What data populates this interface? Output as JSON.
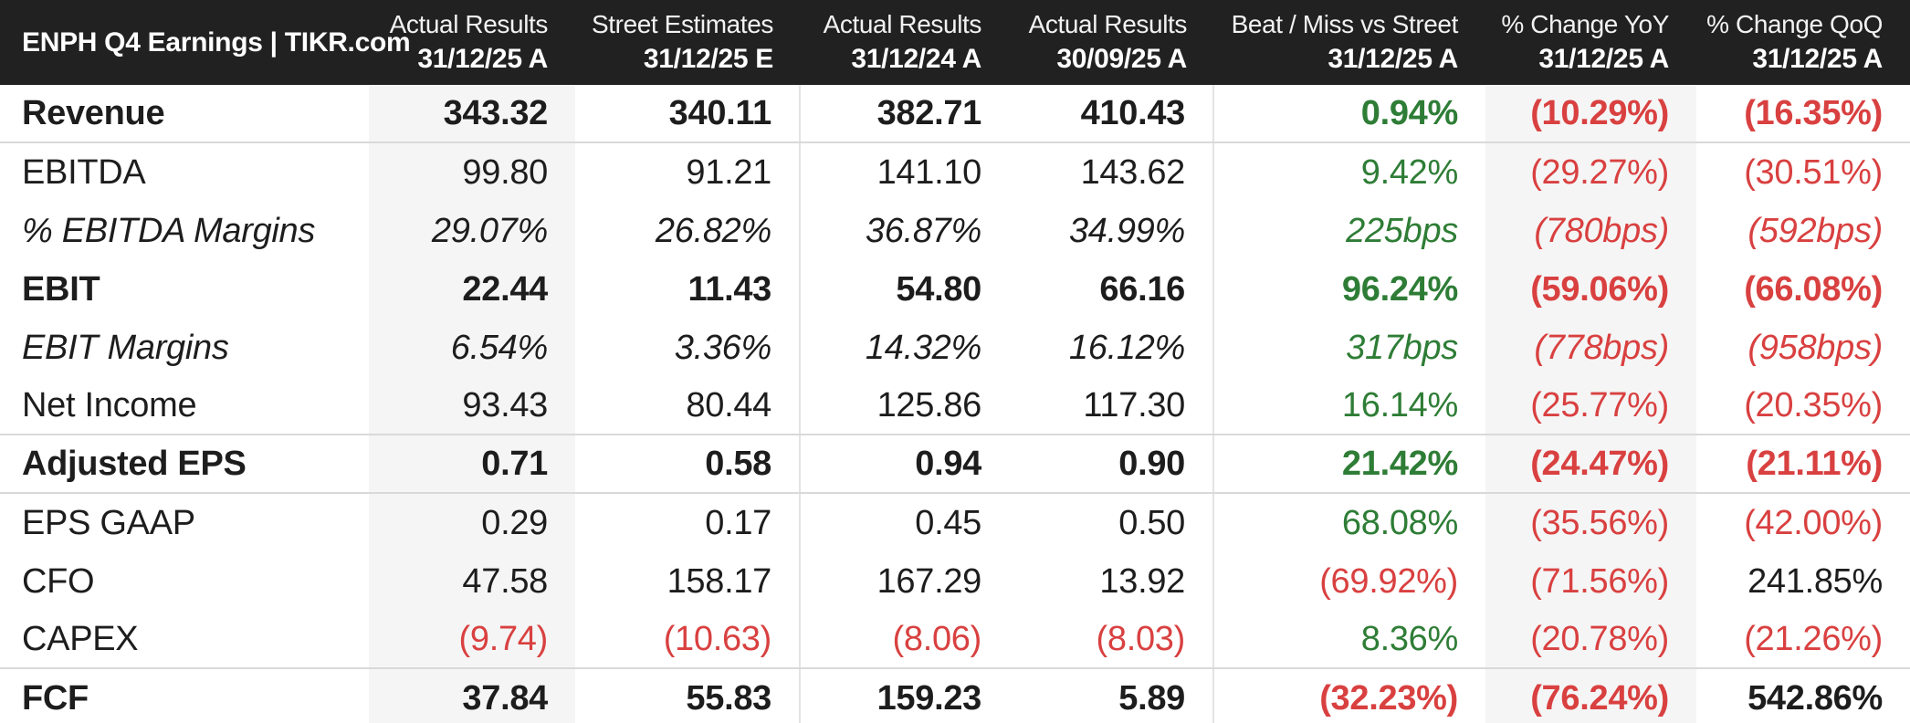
{
  "colors": {
    "header_bg": "#212121",
    "header_text": "#ffffff",
    "text": "#1d1d1d",
    "positive": "#2e7d36",
    "negative": "#d94040",
    "shade": "#f5f5f5",
    "separator": "#d9d9d9",
    "divider": "#e3e3e3",
    "page_bg": "#ffffff"
  },
  "chart_data": {
    "type": "table",
    "title": "ENPH Q4 Earnings | TIKR.com",
    "columns": [
      {
        "label": "Actual Results",
        "period": "31/12/25 A"
      },
      {
        "label": "Street Estimates",
        "period": "31/12/25 E"
      },
      {
        "label": "Actual Results",
        "period": "31/12/24 A"
      },
      {
        "label": "Actual Results",
        "period": "30/09/25 A"
      },
      {
        "label": "Beat / Miss vs Street",
        "period": "31/12/25 A"
      },
      {
        "label": "% Change YoY",
        "period": "31/12/25 A"
      },
      {
        "label": "% Change QoQ",
        "period": "31/12/25 A"
      }
    ],
    "layout": {
      "shaded_columns": [
        0,
        5
      ],
      "divider_after_columns": [
        1,
        3
      ],
      "grid": "off",
      "units": "values in millions except per-share and percentages"
    },
    "rows": [
      {
        "label": "Revenue",
        "emphasis": "bold",
        "separator_after": true,
        "cells": [
          {
            "text": "343.32",
            "tone": "plain"
          },
          {
            "text": "340.11",
            "tone": "plain"
          },
          {
            "text": "382.71",
            "tone": "plain"
          },
          {
            "text": "410.43",
            "tone": "plain"
          },
          {
            "text": "0.94%",
            "tone": "pos"
          },
          {
            "text": "(10.29%)",
            "tone": "neg"
          },
          {
            "text": "(16.35%)",
            "tone": "neg"
          }
        ]
      },
      {
        "label": "EBITDA",
        "emphasis": "normal",
        "separator_after": false,
        "cells": [
          {
            "text": "99.80",
            "tone": "plain"
          },
          {
            "text": "91.21",
            "tone": "plain"
          },
          {
            "text": "141.10",
            "tone": "plain"
          },
          {
            "text": "143.62",
            "tone": "plain"
          },
          {
            "text": "9.42%",
            "tone": "pos"
          },
          {
            "text": "(29.27%)",
            "tone": "neg"
          },
          {
            "text": "(30.51%)",
            "tone": "neg"
          }
        ]
      },
      {
        "label": "% EBITDA Margins",
        "emphasis": "italic",
        "separator_after": false,
        "cells": [
          {
            "text": "29.07%",
            "tone": "plain"
          },
          {
            "text": "26.82%",
            "tone": "plain"
          },
          {
            "text": "36.87%",
            "tone": "plain"
          },
          {
            "text": "34.99%",
            "tone": "plain"
          },
          {
            "text": "225bps",
            "tone": "pos"
          },
          {
            "text": "(780bps)",
            "tone": "neg"
          },
          {
            "text": "(592bps)",
            "tone": "neg"
          }
        ]
      },
      {
        "label": "EBIT",
        "emphasis": "bold",
        "separator_after": false,
        "cells": [
          {
            "text": "22.44",
            "tone": "plain"
          },
          {
            "text": "11.43",
            "tone": "plain"
          },
          {
            "text": "54.80",
            "tone": "plain"
          },
          {
            "text": "66.16",
            "tone": "plain"
          },
          {
            "text": "96.24%",
            "tone": "pos"
          },
          {
            "text": "(59.06%)",
            "tone": "neg"
          },
          {
            "text": "(66.08%)",
            "tone": "neg"
          }
        ]
      },
      {
        "label": "EBIT Margins",
        "emphasis": "italic",
        "separator_after": false,
        "cells": [
          {
            "text": "6.54%",
            "tone": "plain"
          },
          {
            "text": "3.36%",
            "tone": "plain"
          },
          {
            "text": "14.32%",
            "tone": "plain"
          },
          {
            "text": "16.12%",
            "tone": "plain"
          },
          {
            "text": "317bps",
            "tone": "pos"
          },
          {
            "text": "(778bps)",
            "tone": "neg"
          },
          {
            "text": "(958bps)",
            "tone": "neg"
          }
        ]
      },
      {
        "label": "Net Income",
        "emphasis": "normal",
        "separator_after": true,
        "cells": [
          {
            "text": "93.43",
            "tone": "plain"
          },
          {
            "text": "80.44",
            "tone": "plain"
          },
          {
            "text": "125.86",
            "tone": "plain"
          },
          {
            "text": "117.30",
            "tone": "plain"
          },
          {
            "text": "16.14%",
            "tone": "pos"
          },
          {
            "text": "(25.77%)",
            "tone": "neg"
          },
          {
            "text": "(20.35%)",
            "tone": "neg"
          }
        ]
      },
      {
        "label": "Adjusted EPS",
        "emphasis": "bold",
        "separator_after": true,
        "cells": [
          {
            "text": "0.71",
            "tone": "plain"
          },
          {
            "text": "0.58",
            "tone": "plain"
          },
          {
            "text": "0.94",
            "tone": "plain"
          },
          {
            "text": "0.90",
            "tone": "plain"
          },
          {
            "text": "21.42%",
            "tone": "pos"
          },
          {
            "text": "(24.47%)",
            "tone": "neg"
          },
          {
            "text": "(21.11%)",
            "tone": "neg"
          }
        ]
      },
      {
        "label": "EPS GAAP",
        "emphasis": "normal",
        "separator_after": false,
        "cells": [
          {
            "text": "0.29",
            "tone": "plain"
          },
          {
            "text": "0.17",
            "tone": "plain"
          },
          {
            "text": "0.45",
            "tone": "plain"
          },
          {
            "text": "0.50",
            "tone": "plain"
          },
          {
            "text": "68.08%",
            "tone": "pos"
          },
          {
            "text": "(35.56%)",
            "tone": "neg"
          },
          {
            "text": "(42.00%)",
            "tone": "neg"
          }
        ]
      },
      {
        "label": "CFO",
        "emphasis": "normal",
        "separator_after": false,
        "cells": [
          {
            "text": "47.58",
            "tone": "plain"
          },
          {
            "text": "158.17",
            "tone": "plain"
          },
          {
            "text": "167.29",
            "tone": "plain"
          },
          {
            "text": "13.92",
            "tone": "plain"
          },
          {
            "text": "(69.92%)",
            "tone": "neg"
          },
          {
            "text": "(71.56%)",
            "tone": "neg"
          },
          {
            "text": "241.85%",
            "tone": "plain"
          }
        ]
      },
      {
        "label": "CAPEX",
        "emphasis": "normal",
        "separator_after": true,
        "cells": [
          {
            "text": "(9.74)",
            "tone": "neg"
          },
          {
            "text": "(10.63)",
            "tone": "neg"
          },
          {
            "text": "(8.06)",
            "tone": "neg"
          },
          {
            "text": "(8.03)",
            "tone": "neg"
          },
          {
            "text": "8.36%",
            "tone": "pos"
          },
          {
            "text": "(20.78%)",
            "tone": "neg"
          },
          {
            "text": "(21.26%)",
            "tone": "neg"
          }
        ]
      },
      {
        "label": "FCF",
        "emphasis": "bold",
        "separator_after": false,
        "cells": [
          {
            "text": "37.84",
            "tone": "plain"
          },
          {
            "text": "55.83",
            "tone": "plain"
          },
          {
            "text": "159.23",
            "tone": "plain"
          },
          {
            "text": "5.89",
            "tone": "plain"
          },
          {
            "text": "(32.23%)",
            "tone": "neg"
          },
          {
            "text": "(76.24%)",
            "tone": "neg"
          },
          {
            "text": "542.86%",
            "tone": "plain"
          }
        ]
      }
    ]
  }
}
